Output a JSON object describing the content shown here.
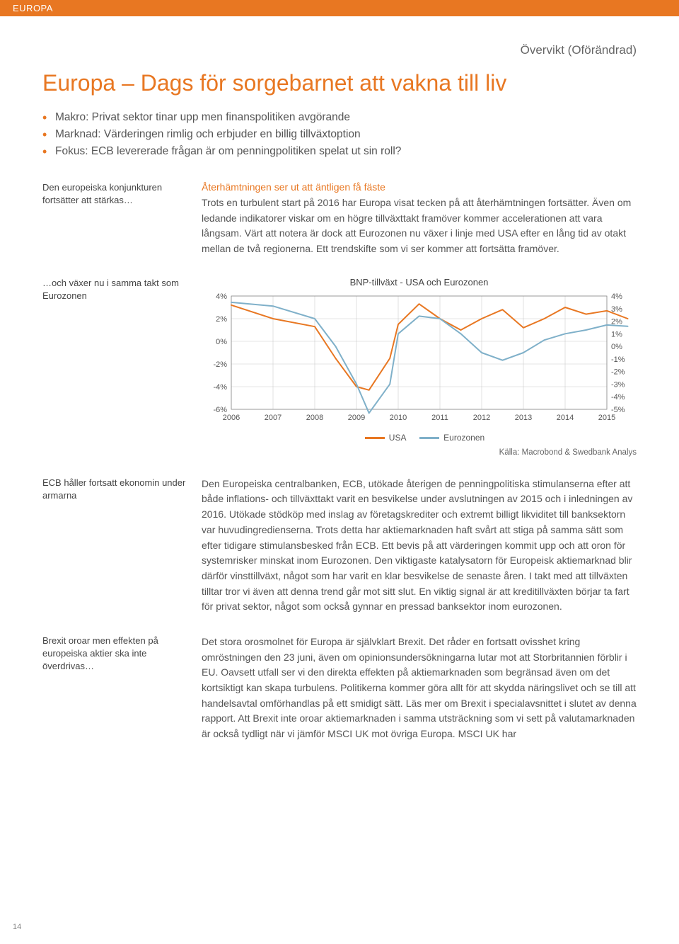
{
  "header": {
    "section": "EUROPA"
  },
  "overvikt": "Övervikt (Oförändrad)",
  "title": "Europa – Dags för sorgebarnet att vakna till liv",
  "bullets": [
    "Makro: Privat sektor tinar upp men finanspolitiken avgörande",
    "Marknad: Värderingen rimlig och erbjuder en billig tillväxtoption",
    "Fokus: ECB levererade frågan är om penningpolitiken spelat ut sin roll?"
  ],
  "section1": {
    "side": "Den europeiska konjunkturen fortsätter att stärkas…",
    "heading": "Återhämtningen ser ut att äntligen få fäste",
    "body": "Trots en turbulent start på 2016 har Europa visat tecken på att återhämtningen fortsätter. Även om ledande indikatorer viskar om en högre tillväxttakt framöver kommer accelerationen att vara långsam. Värt att notera är dock att Eurozonen nu växer i linje med USA efter en lång tid av otakt mellan de två regionerna. Ett trendskifte som vi ser kommer att fortsätta framöver."
  },
  "chart": {
    "side": "…och växer nu i samma takt som Eurozonen",
    "title": "BNP-tillväxt - USA och Eurozonen",
    "type": "line",
    "x_labels": [
      "2006",
      "2007",
      "2008",
      "2009",
      "2010",
      "2011",
      "2012",
      "2013",
      "2014",
      "2015"
    ],
    "left_axis": {
      "min": -6,
      "max": 4,
      "ticks": [
        4,
        2,
        0,
        -2,
        -4,
        -6
      ],
      "suffix": "%"
    },
    "right_axis": {
      "min": -5,
      "max": 4,
      "ticks": [
        4,
        3,
        2,
        1,
        0,
        -1,
        -2,
        -3,
        -4,
        -5
      ],
      "suffix": "%"
    },
    "series": [
      {
        "name": "USA",
        "axis": "left",
        "color": "#e87722",
        "width": 2,
        "points": [
          [
            0,
            3.2
          ],
          [
            1,
            2.0
          ],
          [
            2,
            1.3
          ],
          [
            2.5,
            -1.5
          ],
          [
            3,
            -4.0
          ],
          [
            3.3,
            -4.3
          ],
          [
            3.8,
            -1.5
          ],
          [
            4,
            1.5
          ],
          [
            4.5,
            3.3
          ],
          [
            5,
            2.0
          ],
          [
            5.5,
            1.0
          ],
          [
            6,
            2.0
          ],
          [
            6.5,
            2.8
          ],
          [
            7,
            1.2
          ],
          [
            7.5,
            2.0
          ],
          [
            8,
            3.0
          ],
          [
            8.5,
            2.4
          ],
          [
            9,
            2.7
          ],
          [
            9.5,
            2.0
          ]
        ]
      },
      {
        "name": "Eurozonen",
        "axis": "right",
        "color": "#7fb0c9",
        "width": 2,
        "points": [
          [
            0,
            3.5
          ],
          [
            1,
            3.2
          ],
          [
            2,
            2.2
          ],
          [
            2.5,
            0.0
          ],
          [
            3,
            -3.0
          ],
          [
            3.3,
            -5.3
          ],
          [
            3.8,
            -3.0
          ],
          [
            4,
            1.0
          ],
          [
            4.5,
            2.4
          ],
          [
            5,
            2.2
          ],
          [
            5.5,
            1.0
          ],
          [
            6,
            -0.5
          ],
          [
            6.5,
            -1.1
          ],
          [
            7,
            -0.5
          ],
          [
            7.5,
            0.5
          ],
          [
            8,
            1.0
          ],
          [
            8.5,
            1.3
          ],
          [
            9,
            1.7
          ],
          [
            9.5,
            1.6
          ]
        ]
      }
    ],
    "background_color": "#ffffff",
    "grid_color": "#cccccc",
    "axis_color": "#888888",
    "label_fontsize": 11,
    "legend": [
      "USA",
      "Eurozonen"
    ],
    "source": "Källa: Macrobond & Swedbank Analys"
  },
  "section3": {
    "side": "ECB håller fortsatt ekonomin under armarna",
    "body": "Den Europeiska centralbanken, ECB, utökade återigen de penningpolitiska stimulanserna efter att både inflations- och tillväxttakt varit en besvikelse under avslutningen av 2015 och i inledningen av 2016. Utökade stödköp med inslag av företagskrediter och extremt billigt likviditet till banksektorn var huvudingredienserna. Trots detta har aktiemarknaden haft svårt att stiga på samma sätt som efter tidigare stimulansbesked från ECB. Ett bevis på att värderingen kommit upp och att oron för systemrisker minskat inom Eurozonen. Den viktigaste katalysatorn för Europeisk aktiemarknad blir därför vinsttillväxt, något som har varit en klar besvikelse de senaste åren. I takt med att tillväxten tilltar tror vi även att denna trend går mot sitt slut. En viktig signal är att kreditillväxten börjar ta fart för privat sektor, något som också gynnar en pressad banksektor inom eurozonen."
  },
  "section4": {
    "side": "Brexit oroar men effekten på europeiska aktier ska inte överdrivas…",
    "body": "Det stora orosmolnet för Europa är självklart Brexit. Det råder en fortsatt ovisshet kring omröstningen den 23 juni, även om opinionsundersökningarna lutar mot att Storbritannien förblir i EU. Oavsett utfall ser vi den direkta effekten på aktiemarknaden som begränsad även om det kortsiktigt kan skapa turbulens. Politikerna kommer göra allt för att skydda näringslivet och se till att handelsavtal omförhandlas på ett smidigt sätt. Läs mer om Brexit i specialavsnittet i slutet av denna rapport. Att Brexit inte oroar aktiemarknaden i samma utsträckning som vi sett på valutamarknaden är också tydligt när vi jämför MSCI UK mot övriga Europa. MSCI UK har"
  },
  "page_number": "14"
}
